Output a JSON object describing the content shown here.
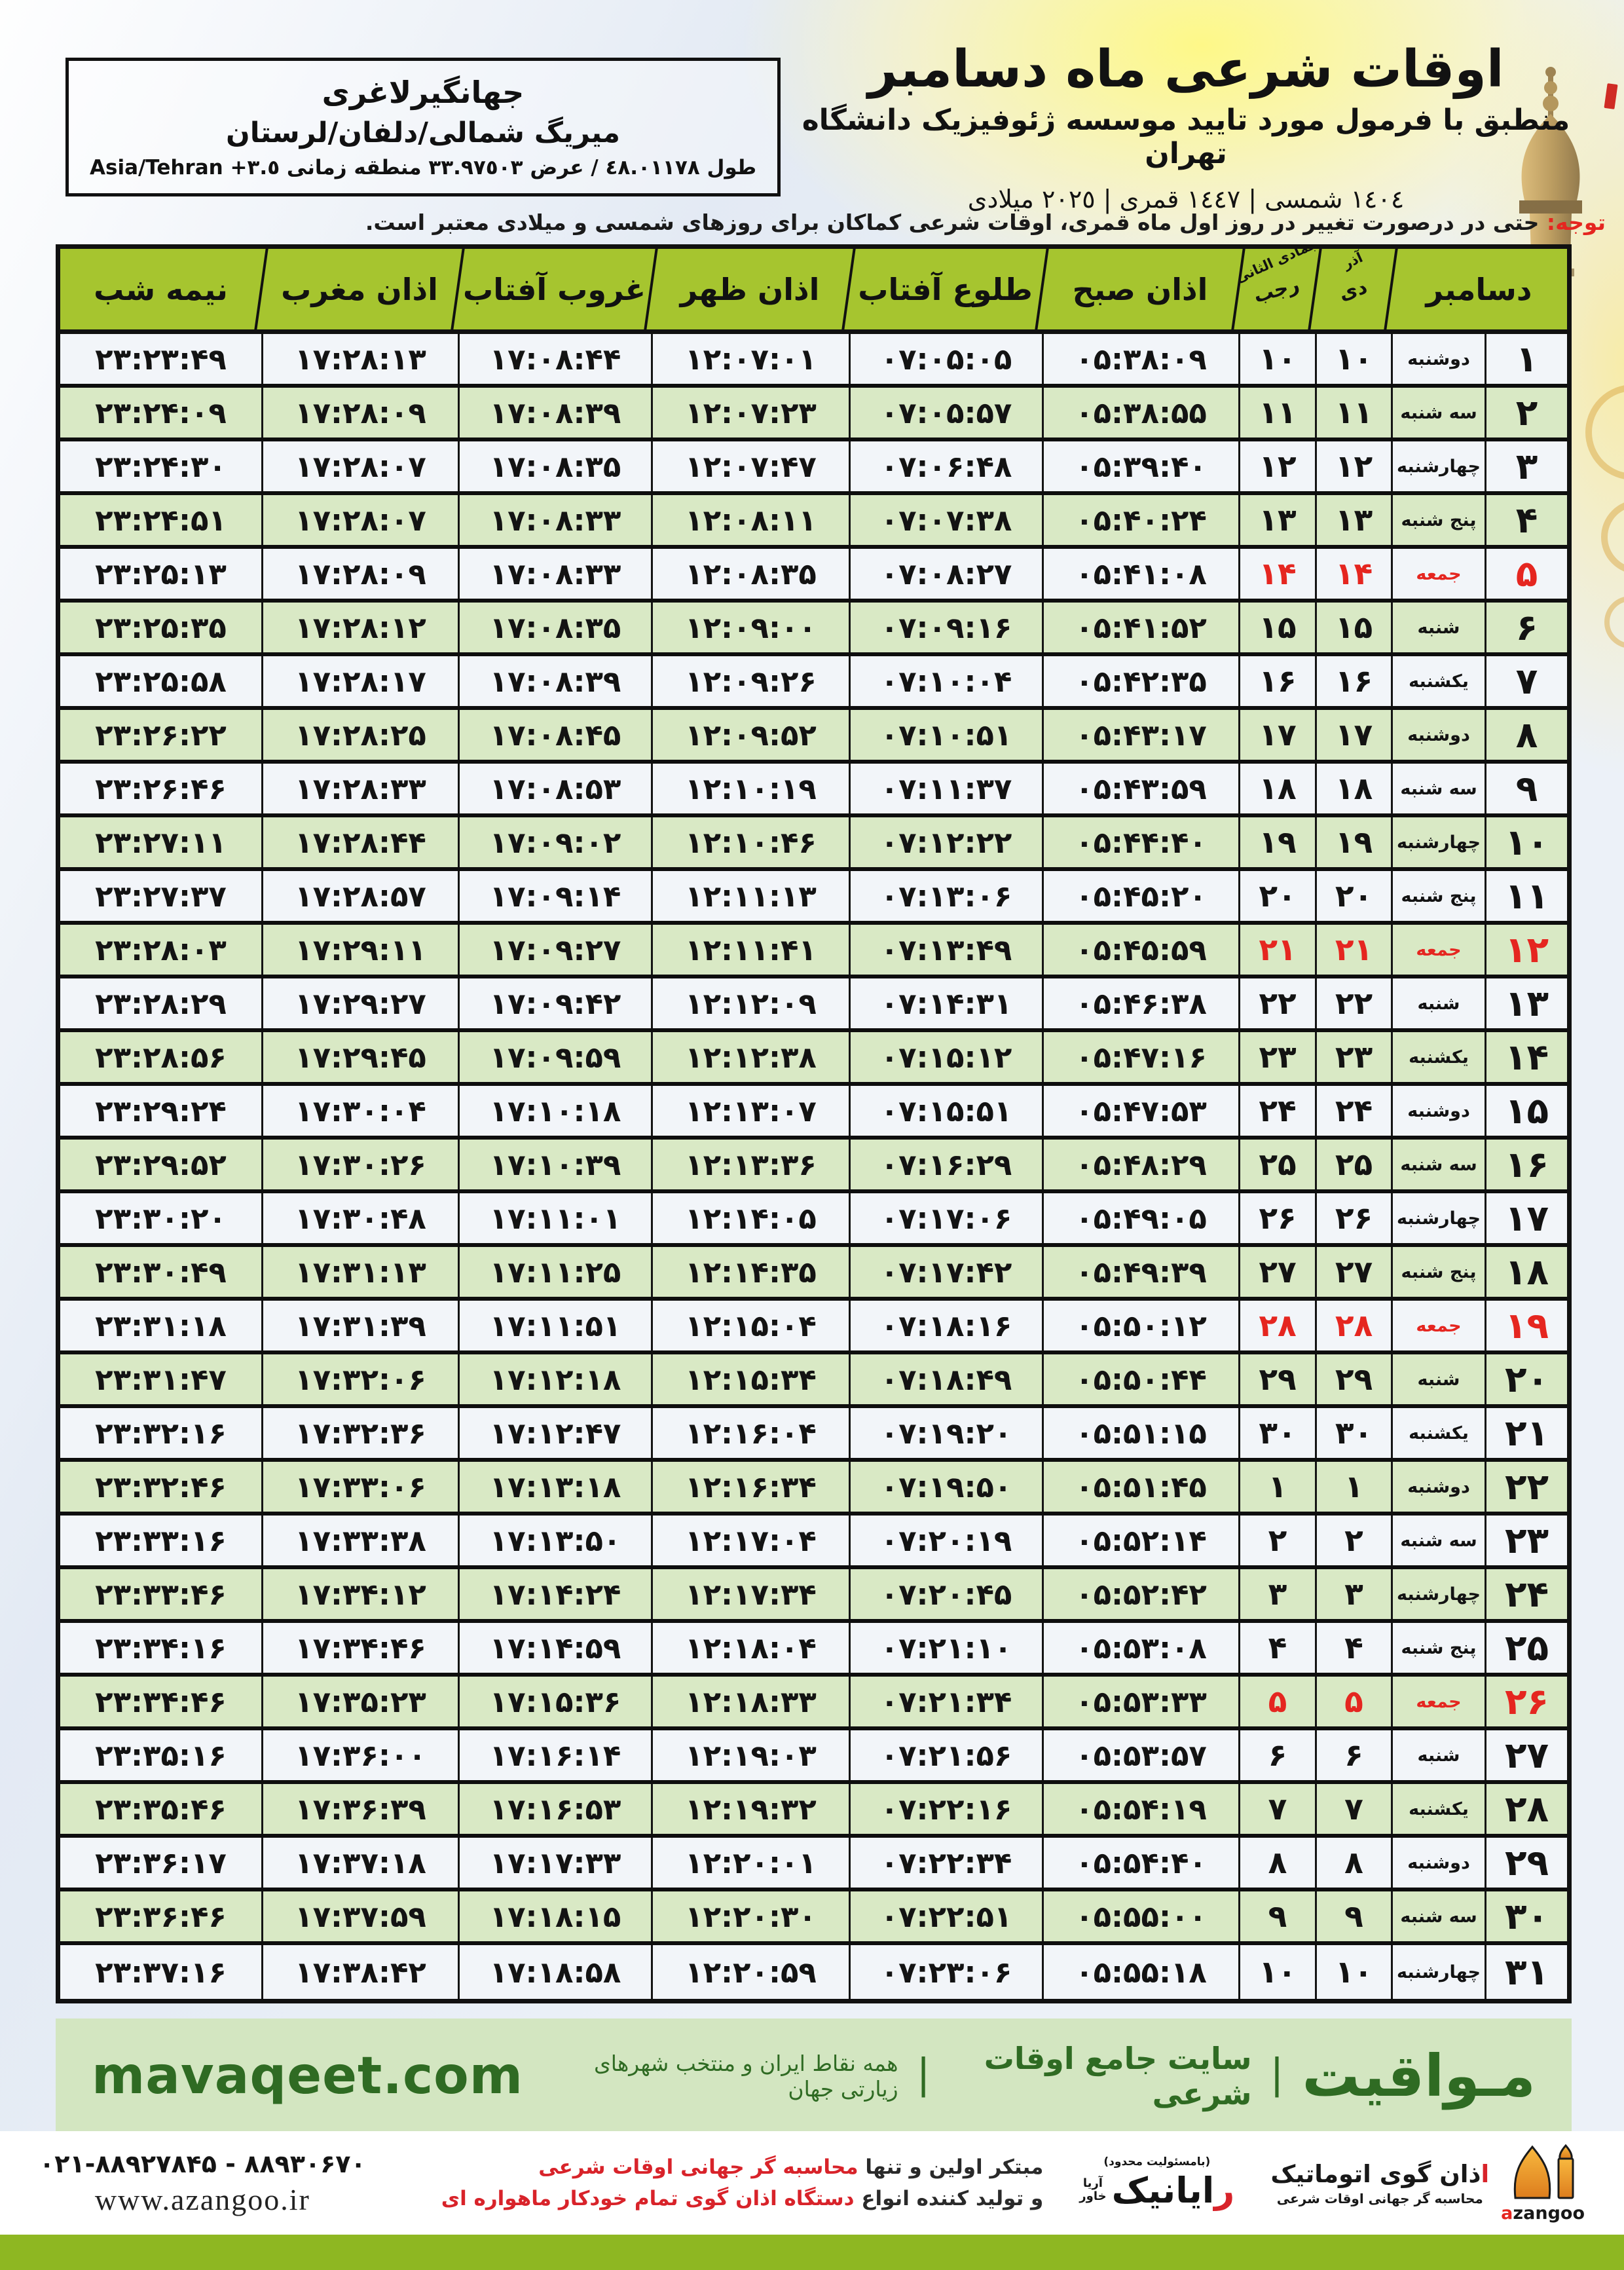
{
  "location_box": {
    "name": "جهانگیرلاغری",
    "region": "میریگ شمالی/دلفان/لرستان",
    "coords": "طول ٤٨.٠١١٧٨ / عرض ٣٣.٩٧٥٠٣ منطقه زمانی ٣.٥+ Asia/Tehran"
  },
  "header": {
    "title": "اوقات شرعی ماه دسامبر",
    "subtitle": "منطبق با فرمول مورد تایید موسسه ژئوفیزیک دانشگاه تهران",
    "era": "١٤٠٤ شمسی | ١٤٤٧ قمری | ٢٠٢٥ میلادی"
  },
  "note": {
    "label": "توجه:",
    "text": "حتی در درصورت تغییر در روز اول ماه قمری، اوقات شرعی کماکان برای روزهای شمسی و میلادی معتبر است."
  },
  "table": {
    "cols": {
      "december": "دسامبر",
      "solar_top": "آذر",
      "solar_bot": "دی",
      "lunar_top": "جمادی الثانی",
      "lunar_bot": "رجب",
      "sobh": "اذان صبح",
      "tolu": "طلوع آفتاب",
      "zohr": "اذان ظهر",
      "ghorub": "غروب آفتاب",
      "maghreb": "اذان مغرب",
      "nime": "نیمه شب"
    },
    "rows": [
      {
        "d": "۱",
        "w": "دوشنبه",
        "m1": "۱۰",
        "m2": "۱۰",
        "sobh": "۰۵:۳۸:۰۹",
        "tolu": "۰۷:۰۵:۰۵",
        "zohr": "۱۲:۰۷:۰۱",
        "ghorub": "۱۷:۰۸:۴۴",
        "maghreb": "۱۷:۲۸:۱۳",
        "nime": "۲۳:۲۳:۴۹",
        "f": 0
      },
      {
        "d": "۲",
        "w": "سه شنبه",
        "m1": "۱۱",
        "m2": "۱۱",
        "sobh": "۰۵:۳۸:۵۵",
        "tolu": "۰۷:۰۵:۵۷",
        "zohr": "۱۲:۰۷:۲۳",
        "ghorub": "۱۷:۰۸:۳۹",
        "maghreb": "۱۷:۲۸:۰۹",
        "nime": "۲۳:۲۴:۰۹",
        "f": 0
      },
      {
        "d": "۳",
        "w": "چهارشنبه",
        "m1": "۱۲",
        "m2": "۱۲",
        "sobh": "۰۵:۳۹:۴۰",
        "tolu": "۰۷:۰۶:۴۸",
        "zohr": "۱۲:۰۷:۴۷",
        "ghorub": "۱۷:۰۸:۳۵",
        "maghreb": "۱۷:۲۸:۰۷",
        "nime": "۲۳:۲۴:۳۰",
        "f": 0
      },
      {
        "d": "۴",
        "w": "پنج شنبه",
        "m1": "۱۳",
        "m2": "۱۳",
        "sobh": "۰۵:۴۰:۲۴",
        "tolu": "۰۷:۰۷:۳۸",
        "zohr": "۱۲:۰۸:۱۱",
        "ghorub": "۱۷:۰۸:۳۳",
        "maghreb": "۱۷:۲۸:۰۷",
        "nime": "۲۳:۲۴:۵۱",
        "f": 0
      },
      {
        "d": "۵",
        "w": "جمعه",
        "m1": "۱۴",
        "m2": "۱۴",
        "sobh": "۰۵:۴۱:۰۸",
        "tolu": "۰۷:۰۸:۲۷",
        "zohr": "۱۲:۰۸:۳۵",
        "ghorub": "۱۷:۰۸:۳۳",
        "maghreb": "۱۷:۲۸:۰۹",
        "nime": "۲۳:۲۵:۱۳",
        "f": 1
      },
      {
        "d": "۶",
        "w": "شنبه",
        "m1": "۱۵",
        "m2": "۱۵",
        "sobh": "۰۵:۴۱:۵۲",
        "tolu": "۰۷:۰۹:۱۶",
        "zohr": "۱۲:۰۹:۰۰",
        "ghorub": "۱۷:۰۸:۳۵",
        "maghreb": "۱۷:۲۸:۱۲",
        "nime": "۲۳:۲۵:۳۵",
        "f": 0
      },
      {
        "d": "۷",
        "w": "یکشنبه",
        "m1": "۱۶",
        "m2": "۱۶",
        "sobh": "۰۵:۴۲:۳۵",
        "tolu": "۰۷:۱۰:۰۴",
        "zohr": "۱۲:۰۹:۲۶",
        "ghorub": "۱۷:۰۸:۳۹",
        "maghreb": "۱۷:۲۸:۱۷",
        "nime": "۲۳:۲۵:۵۸",
        "f": 0
      },
      {
        "d": "۸",
        "w": "دوشنبه",
        "m1": "۱۷",
        "m2": "۱۷",
        "sobh": "۰۵:۴۳:۱۷",
        "tolu": "۰۷:۱۰:۵۱",
        "zohr": "۱۲:۰۹:۵۲",
        "ghorub": "۱۷:۰۸:۴۵",
        "maghreb": "۱۷:۲۸:۲۵",
        "nime": "۲۳:۲۶:۲۲",
        "f": 0
      },
      {
        "d": "۹",
        "w": "سه شنبه",
        "m1": "۱۸",
        "m2": "۱۸",
        "sobh": "۰۵:۴۳:۵۹",
        "tolu": "۰۷:۱۱:۳۷",
        "zohr": "۱۲:۱۰:۱۹",
        "ghorub": "۱۷:۰۸:۵۳",
        "maghreb": "۱۷:۲۸:۳۳",
        "nime": "۲۳:۲۶:۴۶",
        "f": 0
      },
      {
        "d": "۱۰",
        "w": "چهارشنبه",
        "m1": "۱۹",
        "m2": "۱۹",
        "sobh": "۰۵:۴۴:۴۰",
        "tolu": "۰۷:۱۲:۲۲",
        "zohr": "۱۲:۱۰:۴۶",
        "ghorub": "۱۷:۰۹:۰۲",
        "maghreb": "۱۷:۲۸:۴۴",
        "nime": "۲۳:۲۷:۱۱",
        "f": 0
      },
      {
        "d": "۱۱",
        "w": "پنج شنبه",
        "m1": "۲۰",
        "m2": "۲۰",
        "sobh": "۰۵:۴۵:۲۰",
        "tolu": "۰۷:۱۳:۰۶",
        "zohr": "۱۲:۱۱:۱۳",
        "ghorub": "۱۷:۰۹:۱۴",
        "maghreb": "۱۷:۲۸:۵۷",
        "nime": "۲۳:۲۷:۳۷",
        "f": 0
      },
      {
        "d": "۱۲",
        "w": "جمعه",
        "m1": "۲۱",
        "m2": "۲۱",
        "sobh": "۰۵:۴۵:۵۹",
        "tolu": "۰۷:۱۳:۴۹",
        "zohr": "۱۲:۱۱:۴۱",
        "ghorub": "۱۷:۰۹:۲۷",
        "maghreb": "۱۷:۲۹:۱۱",
        "nime": "۲۳:۲۸:۰۳",
        "f": 1
      },
      {
        "d": "۱۳",
        "w": "شنبه",
        "m1": "۲۲",
        "m2": "۲۲",
        "sobh": "۰۵:۴۶:۳۸",
        "tolu": "۰۷:۱۴:۳۱",
        "zohr": "۱۲:۱۲:۰۹",
        "ghorub": "۱۷:۰۹:۴۲",
        "maghreb": "۱۷:۲۹:۲۷",
        "nime": "۲۳:۲۸:۲۹",
        "f": 0
      },
      {
        "d": "۱۴",
        "w": "یکشنبه",
        "m1": "۲۳",
        "m2": "۲۳",
        "sobh": "۰۵:۴۷:۱۶",
        "tolu": "۰۷:۱۵:۱۲",
        "zohr": "۱۲:۱۲:۳۸",
        "ghorub": "۱۷:۰۹:۵۹",
        "maghreb": "۱۷:۲۹:۴۵",
        "nime": "۲۳:۲۸:۵۶",
        "f": 0
      },
      {
        "d": "۱۵",
        "w": "دوشنبه",
        "m1": "۲۴",
        "m2": "۲۴",
        "sobh": "۰۵:۴۷:۵۳",
        "tolu": "۰۷:۱۵:۵۱",
        "zohr": "۱۲:۱۳:۰۷",
        "ghorub": "۱۷:۱۰:۱۸",
        "maghreb": "۱۷:۳۰:۰۴",
        "nime": "۲۳:۲۹:۲۴",
        "f": 0
      },
      {
        "d": "۱۶",
        "w": "سه شنبه",
        "m1": "۲۵",
        "m2": "۲۵",
        "sobh": "۰۵:۴۸:۲۹",
        "tolu": "۰۷:۱۶:۲۹",
        "zohr": "۱۲:۱۳:۳۶",
        "ghorub": "۱۷:۱۰:۳۹",
        "maghreb": "۱۷:۳۰:۲۶",
        "nime": "۲۳:۲۹:۵۲",
        "f": 0
      },
      {
        "d": "۱۷",
        "w": "چهارشنبه",
        "m1": "۲۶",
        "m2": "۲۶",
        "sobh": "۰۵:۴۹:۰۵",
        "tolu": "۰۷:۱۷:۰۶",
        "zohr": "۱۲:۱۴:۰۵",
        "ghorub": "۱۷:۱۱:۰۱",
        "maghreb": "۱۷:۳۰:۴۸",
        "nime": "۲۳:۳۰:۲۰",
        "f": 0
      },
      {
        "d": "۱۸",
        "w": "پنج شنبه",
        "m1": "۲۷",
        "m2": "۲۷",
        "sobh": "۰۵:۴۹:۳۹",
        "tolu": "۰۷:۱۷:۴۲",
        "zohr": "۱۲:۱۴:۳۵",
        "ghorub": "۱۷:۱۱:۲۵",
        "maghreb": "۱۷:۳۱:۱۳",
        "nime": "۲۳:۳۰:۴۹",
        "f": 0
      },
      {
        "d": "۱۹",
        "w": "جمعه",
        "m1": "۲۸",
        "m2": "۲۸",
        "sobh": "۰۵:۵۰:۱۲",
        "tolu": "۰۷:۱۸:۱۶",
        "zohr": "۱۲:۱۵:۰۴",
        "ghorub": "۱۷:۱۱:۵۱",
        "maghreb": "۱۷:۳۱:۳۹",
        "nime": "۲۳:۳۱:۱۸",
        "f": 1
      },
      {
        "d": "۲۰",
        "w": "شنبه",
        "m1": "۲۹",
        "m2": "۲۹",
        "sobh": "۰۵:۵۰:۴۴",
        "tolu": "۰۷:۱۸:۴۹",
        "zohr": "۱۲:۱۵:۳۴",
        "ghorub": "۱۷:۱۲:۱۸",
        "maghreb": "۱۷:۳۲:۰۶",
        "nime": "۲۳:۳۱:۴۷",
        "f": 0
      },
      {
        "d": "۲۱",
        "w": "یکشنبه",
        "m1": "۳۰",
        "m2": "۳۰",
        "sobh": "۰۵:۵۱:۱۵",
        "tolu": "۰۷:۱۹:۲۰",
        "zohr": "۱۲:۱۶:۰۴",
        "ghorub": "۱۷:۱۲:۴۷",
        "maghreb": "۱۷:۳۲:۳۶",
        "nime": "۲۳:۳۲:۱۶",
        "f": 0
      },
      {
        "d": "۲۲",
        "w": "دوشنبه",
        "m1": "۱",
        "m2": "۱",
        "sobh": "۰۵:۵۱:۴۵",
        "tolu": "۰۷:۱۹:۵۰",
        "zohr": "۱۲:۱۶:۳۴",
        "ghorub": "۱۷:۱۳:۱۸",
        "maghreb": "۱۷:۳۳:۰۶",
        "nime": "۲۳:۳۲:۴۶",
        "f": 0
      },
      {
        "d": "۲۳",
        "w": "سه شنبه",
        "m1": "۲",
        "m2": "۲",
        "sobh": "۰۵:۵۲:۱۴",
        "tolu": "۰۷:۲۰:۱۹",
        "zohr": "۱۲:۱۷:۰۴",
        "ghorub": "۱۷:۱۳:۵۰",
        "maghreb": "۱۷:۳۳:۳۸",
        "nime": "۲۳:۳۳:۱۶",
        "f": 0
      },
      {
        "d": "۲۴",
        "w": "چهارشنبه",
        "m1": "۳",
        "m2": "۳",
        "sobh": "۰۵:۵۲:۴۲",
        "tolu": "۰۷:۲۰:۴۵",
        "zohr": "۱۲:۱۷:۳۴",
        "ghorub": "۱۷:۱۴:۲۴",
        "maghreb": "۱۷:۳۴:۱۲",
        "nime": "۲۳:۳۳:۴۶",
        "f": 0
      },
      {
        "d": "۲۵",
        "w": "پنج شنبه",
        "m1": "۴",
        "m2": "۴",
        "sobh": "۰۵:۵۳:۰۸",
        "tolu": "۰۷:۲۱:۱۰",
        "zohr": "۱۲:۱۸:۰۴",
        "ghorub": "۱۷:۱۴:۵۹",
        "maghreb": "۱۷:۳۴:۴۶",
        "nime": "۲۳:۳۴:۱۶",
        "f": 0
      },
      {
        "d": "۲۶",
        "w": "جمعه",
        "m1": "۵",
        "m2": "۵",
        "sobh": "۰۵:۵۳:۳۳",
        "tolu": "۰۷:۲۱:۳۴",
        "zohr": "۱۲:۱۸:۳۳",
        "ghorub": "۱۷:۱۵:۳۶",
        "maghreb": "۱۷:۳۵:۲۳",
        "nime": "۲۳:۳۴:۴۶",
        "f": 1
      },
      {
        "d": "۲۷",
        "w": "شنبه",
        "m1": "۶",
        "m2": "۶",
        "sobh": "۰۵:۵۳:۵۷",
        "tolu": "۰۷:۲۱:۵۶",
        "zohr": "۱۲:۱۹:۰۳",
        "ghorub": "۱۷:۱۶:۱۴",
        "maghreb": "۱۷:۳۶:۰۰",
        "nime": "۲۳:۳۵:۱۶",
        "f": 0
      },
      {
        "d": "۲۸",
        "w": "یکشنبه",
        "m1": "۷",
        "m2": "۷",
        "sobh": "۰۵:۵۴:۱۹",
        "tolu": "۰۷:۲۲:۱۶",
        "zohr": "۱۲:۱۹:۳۲",
        "ghorub": "۱۷:۱۶:۵۳",
        "maghreb": "۱۷:۳۶:۳۹",
        "nime": "۲۳:۳۵:۴۶",
        "f": 0
      },
      {
        "d": "۲۹",
        "w": "دوشنبه",
        "m1": "۸",
        "m2": "۸",
        "sobh": "۰۵:۵۴:۴۰",
        "tolu": "۰۷:۲۲:۳۴",
        "zohr": "۱۲:۲۰:۰۱",
        "ghorub": "۱۷:۱۷:۳۳",
        "maghreb": "۱۷:۳۷:۱۸",
        "nime": "۲۳:۳۶:۱۷",
        "f": 0
      },
      {
        "d": "۳۰",
        "w": "سه شنبه",
        "m1": "۹",
        "m2": "۹",
        "sobh": "۰۵:۵۵:۰۰",
        "tolu": "۰۷:۲۲:۵۱",
        "zohr": "۱۲:۲۰:۳۰",
        "ghorub": "۱۷:۱۸:۱۵",
        "maghreb": "۱۷:۳۷:۵۹",
        "nime": "۲۳:۳۶:۴۶",
        "f": 0
      },
      {
        "d": "۳۱",
        "w": "چهارشنبه",
        "m1": "۱۰",
        "m2": "۱۰",
        "sobh": "۰۵:۵۵:۱۸",
        "tolu": "۰۷:۲۳:۰۶",
        "zohr": "۱۲:۲۰:۵۹",
        "ghorub": "۱۷:۱۸:۵۸",
        "maghreb": "۱۷:۳۸:۴۲",
        "nime": "۲۳:۳۷:۱۶",
        "f": 0
      }
    ]
  },
  "footer": {
    "brand": "مـواقیت",
    "sep": "|",
    "tagline1": "سایت جامع اوقات شرعی",
    "tagline2": "همه نقاط ایران و منتخب شهرهای زیارتی جهان",
    "site": "mavaqeet.com"
  },
  "bottom": {
    "azangoo": {
      "l1_red": "ا",
      "l1_black": "ذان گوی اتوماتیک",
      "l2": "محاسبه گر جهانی اوقات شرعی",
      "latin_red": "a",
      "latin_black": "zangoo"
    },
    "rayanik": {
      "top": "(بامسئولیت محدود)",
      "name_red": "ر",
      "name_black": "ایانیک",
      "side_top": "آریا",
      "side_bottom": "خاور"
    },
    "promo1_black": "مبتکر اولین و تنها ",
    "promo1_red": "محاسبه گر جهانی اوقات شرعی",
    "promo2_black": "و تولید کننده انواع ",
    "promo2_red": "دستگاه اذان گوی تمام خودکار ماهواره ای",
    "phone": "۰۲۱-۸۸۹۲۷۸۴۵ - ۸۸۹۳۰۶۷۰",
    "web": "www.azangoo.ir"
  },
  "colors": {
    "header_green": "#a6c52f",
    "row_green": "#d9e9c5",
    "row_light": "#f2f5f9",
    "accent_red": "#e52620",
    "band_green": "#d3e6c1",
    "brand_green": "#2f6b23",
    "bottom_bar_green": "#8eb722",
    "logo_orange": "#f0932b",
    "border_black": "#111111"
  }
}
